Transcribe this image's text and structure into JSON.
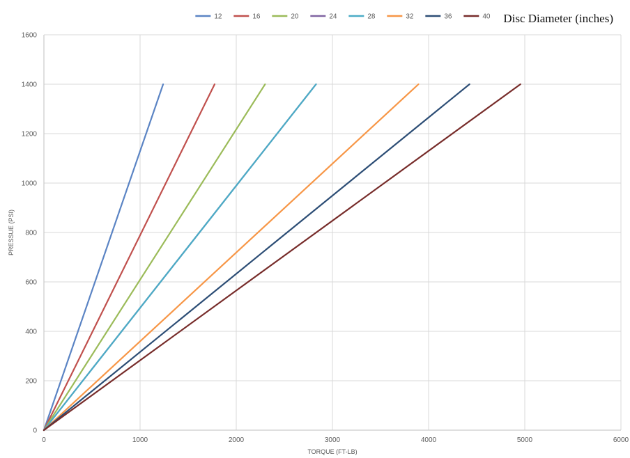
{
  "chart_data": {
    "type": "line",
    "title": "",
    "xlabel": "TORQUE (FT-LB)",
    "ylabel": "PRESSUE (PSI)",
    "xlim": [
      0,
      6000
    ],
    "ylim": [
      0,
      1600
    ],
    "x_ticks": [
      "0",
      "1000",
      "2000",
      "3000",
      "4000",
      "5000",
      "6000"
    ],
    "y_ticks": [
      "0",
      "200",
      "400",
      "600",
      "800",
      "1000",
      "1200",
      "1400",
      "1600"
    ],
    "grid": true,
    "legend_title": "Disc Diameter (inches)",
    "legend_position": "top-right",
    "series": [
      {
        "name": "12",
        "color": "#5b84c4",
        "points": [
          [
            0,
            0
          ],
          [
            1240,
            1400
          ]
        ]
      },
      {
        "name": "16",
        "color": "#c0504d",
        "points": [
          [
            0,
            0
          ],
          [
            1775,
            1400
          ]
        ]
      },
      {
        "name": "20",
        "color": "#9bbb59",
        "points": [
          [
            0,
            0
          ],
          [
            2300,
            1400
          ]
        ]
      },
      {
        "name": "24",
        "color": "#8064a2",
        "points": [
          [
            0,
            0
          ],
          [
            2830,
            1400
          ]
        ]
      },
      {
        "name": "28",
        "color": "#4bacc6",
        "points": [
          [
            0,
            0
          ],
          [
            2830,
            1400
          ]
        ]
      },
      {
        "name": "32",
        "color": "#f79646",
        "points": [
          [
            0,
            0
          ],
          [
            3895,
            1400
          ]
        ]
      },
      {
        "name": "36",
        "color": "#2c4d75",
        "points": [
          [
            0,
            0
          ],
          [
            4425,
            1400
          ]
        ]
      },
      {
        "name": "40",
        "color": "#772c2a",
        "points": [
          [
            0,
            0
          ],
          [
            4955,
            1400
          ]
        ]
      }
    ]
  }
}
